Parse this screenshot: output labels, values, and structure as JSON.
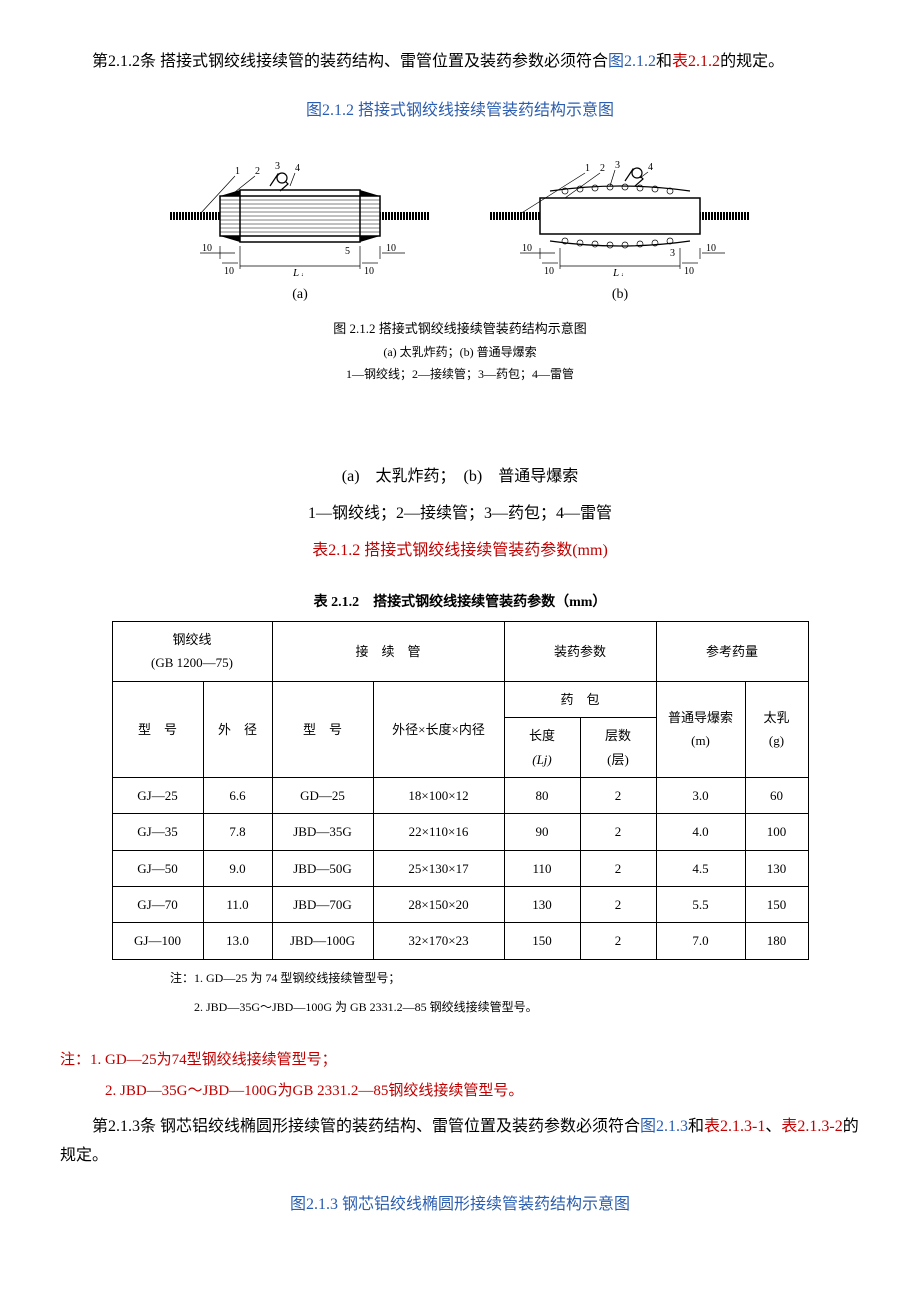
{
  "para_2_1_2": {
    "lead": "第2.1.2条 搭接式钢绞线接续管的装药结构、雷管位置及装药参数必须符合",
    "link_fig": "图2.1.2",
    "mid": "和",
    "link_tbl": "表2.1.2",
    "tail": "的规定。"
  },
  "fig_2_1_2": {
    "title": "图2.1.2  搭接式钢绞线接续管装药结构示意图",
    "label_a": "(a)",
    "label_b": "(b)",
    "caption": "图 2.1.2  搭接式钢绞线接续管装药结构示意图",
    "sub1": "(a) 太乳炸药；(b) 普通导爆索",
    "sub2": "1—钢绞线；2—接续管；3—药包；4—雷管",
    "legend_line": "(a)　太乳炸药；　(b)　普通导爆索",
    "legend_parts": "1—钢绞线；2—接续管；3—药包；4—雷管",
    "table_title_red": "表2.1.2  搭接式钢绞线接续管装药参数(mm)"
  },
  "table_2_1_2": {
    "title": "表 2.1.2　搭接式钢绞线接续管装药参数（mm）",
    "head": {
      "c1": "钢绞线",
      "c1_sub": "(GB 1200—75)",
      "c2": "接　续　管",
      "c3": "装药参数",
      "c4": "参考药量",
      "r2_model": "型　号",
      "r2_od": "外　径",
      "r2_tube_model": "型　号",
      "r2_dims": "外径×长度×内径",
      "r2_pack": "药　包",
      "r2_len": "长度",
      "r2_len_sym": "(Lj)",
      "r2_layers": "层数",
      "r2_layers_unit": "(层)",
      "r2_cord": "普通导爆索",
      "r2_cord_unit": "(m)",
      "r2_milk": "太乳",
      "r2_milk_unit": "(g)"
    },
    "rows": [
      [
        "GJ—25",
        "6.6",
        "GD—25",
        "18×100×12",
        "80",
        "2",
        "3.0",
        "60"
      ],
      [
        "GJ—35",
        "7.8",
        "JBD—35G",
        "22×110×16",
        "90",
        "2",
        "4.0",
        "100"
      ],
      [
        "GJ—50",
        "9.0",
        "JBD—50G",
        "25×130×17",
        "110",
        "2",
        "4.5",
        "130"
      ],
      [
        "GJ—70",
        "11.0",
        "JBD—70G",
        "28×150×20",
        "130",
        "2",
        "5.5",
        "150"
      ],
      [
        "GJ—100",
        "13.0",
        "JBD—100G",
        "32×170×23",
        "150",
        "2",
        "7.0",
        "180"
      ]
    ],
    "notes": {
      "n1": "注：1. GD—25 为 74 型钢绞线接续管型号；",
      "n2": "　　2. JBD—35G～JBD—100G 为 GB 2331.2—85 钢绞线接续管型号。"
    }
  },
  "notes_red": {
    "n1": "注：1. GD—25为74型钢绞线接续管型号；",
    "n2": "2. JBD—35G～JBD—100G为GB 2331.2—85钢绞线接续管型号。"
  },
  "para_2_1_3": {
    "lead": "第2.1.3条 钢芯铝绞线椭圆形接续管的装药结构、雷管位置及装药参数必须符合",
    "link_fig": "图2.1.3",
    "mid1": "和",
    "link_tbl1": "表2.1.3-1",
    "mid2": "、",
    "link_tbl2": "表2.1.3-2",
    "tail": "的规定。"
  },
  "fig_2_1_3": {
    "title": "图2.1.3  钢芯铝绞线椭圆形接续管装药结构示意图"
  },
  "table_widths": [
    70,
    48,
    80,
    110,
    55,
    55,
    68,
    42
  ]
}
